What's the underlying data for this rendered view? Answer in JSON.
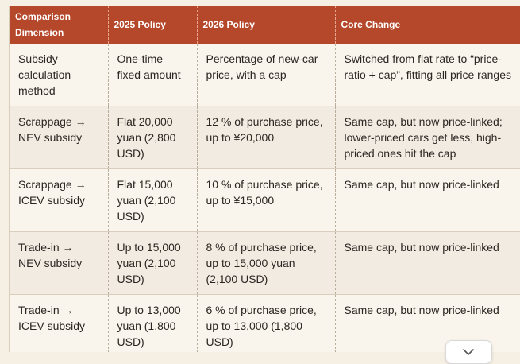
{
  "table": {
    "headers": [
      "Comparison\nDimension",
      "2025 Policy",
      "2026 Policy",
      "Core Change"
    ],
    "rows": [
      {
        "dimension": "Subsidy calculation method",
        "policy_2025": "One-time fixed amount",
        "policy_2026": "Percentage of new-car price, with a cap",
        "change": "Switched from flat rate to “price-ratio + cap”, fitting all price ranges"
      },
      {
        "dimension": "Scrappage → NEV subsidy",
        "policy_2025": "Flat 20,000 yuan (2,800 USD)",
        "policy_2026": "12 % of purchase price, up to ¥20,000",
        "change": "Same cap, but now price-linked; lower-priced cars get less, high-priced ones hit the cap"
      },
      {
        "dimension": "Scrappage → ICEV subsidy",
        "policy_2025": "Flat 15,000 yuan (2,100 USD)",
        "policy_2026": "10 % of purchase price, up to ¥15,000",
        "change": "Same cap, but now price-linked"
      },
      {
        "dimension": "Trade-in → NEV subsidy",
        "policy_2025": "Up to 15,000 yuan (2,100 USD)",
        "policy_2026": "8 % of purchase price, up to 15,000 yuan (2,100 USD)",
        "change": "Same cap, but now price-linked"
      },
      {
        "dimension": "Trade-in → ICEV subsidy",
        "policy_2025": "Up to 13,000 yuan (1,800 USD)",
        "policy_2026": "6 % of purchase price, up to 13,000 (1,800 USD)",
        "change": "Same cap, but now price-linked"
      }
    ]
  },
  "scroll_button": {
    "icon": "chevron-down-icon"
  }
}
